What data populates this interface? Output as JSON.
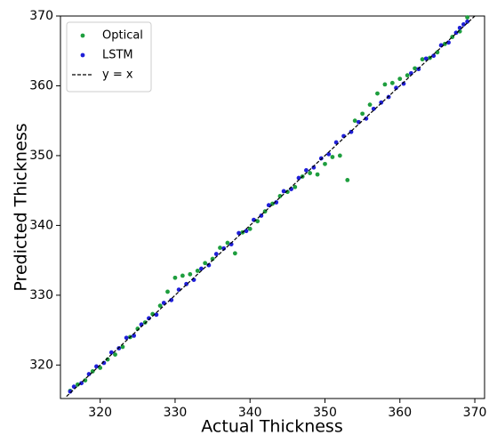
{
  "chart_data": {
    "type": "scatter",
    "x_label": "Actual Thickness",
    "y_label": "Predicted Thickness",
    "xlim": [
      314.7,
      371.3
    ],
    "ylim": [
      315.2,
      370
    ],
    "xticks": [
      320,
      330,
      340,
      350,
      360,
      370
    ],
    "yticks": [
      320,
      330,
      340,
      350,
      360,
      370
    ],
    "legend": "upper left",
    "series": [
      {
        "name": "Optical",
        "color": "#1e9e3e",
        "x": [
          316,
          317,
          318,
          319,
          320,
          321,
          322,
          323,
          324,
          325,
          326,
          327,
          328,
          329,
          330,
          331,
          332,
          333,
          334,
          335,
          336,
          337,
          338,
          339,
          340,
          341,
          342,
          343,
          344,
          345,
          346,
          347,
          348,
          349,
          350,
          351,
          352,
          353,
          354,
          355,
          356,
          357,
          358,
          359,
          360,
          361,
          362,
          363,
          364,
          365,
          366,
          367,
          368,
          369
        ],
        "values": [
          316.3,
          317.2,
          317.8,
          319.1,
          319.6,
          320.8,
          321.5,
          322.6,
          324.0,
          325.2,
          326.1,
          327.3,
          328.5,
          330.5,
          332.5,
          332.8,
          333.0,
          333.5,
          334.6,
          335.2,
          336.8,
          337.5,
          336.0,
          339.0,
          339.5,
          340.6,
          342.0,
          343.1,
          344.2,
          344.8,
          345.5,
          347.0,
          347.5,
          347.3,
          348.8,
          349.8,
          350.0,
          346.5,
          355.0,
          356.0,
          357.3,
          358.9,
          360.2,
          360.4,
          361.0,
          361.5,
          362.5,
          363.8,
          364.0,
          364.8,
          366.0,
          367.0,
          367.8,
          369.8
        ]
      },
      {
        "name": "LSTM",
        "color": "#1f1fd8",
        "x": [
          316,
          316.5,
          317.5,
          318.5,
          319.5,
          320.5,
          321.5,
          322.5,
          323.5,
          324.5,
          325.5,
          326.5,
          327.5,
          328.5,
          329.5,
          330.5,
          331.5,
          332.5,
          333.5,
          334.5,
          335.5,
          336.5,
          337.5,
          338.5,
          339.5,
          340.5,
          341.5,
          342.5,
          343.5,
          344.5,
          345.5,
          346.5,
          347.5,
          348.5,
          349.5,
          350.5,
          351.5,
          352.5,
          353.5,
          354.5,
          355.5,
          356.5,
          357.5,
          358.5,
          359.5,
          360.5,
          361.5,
          362.5,
          363.5,
          364.5,
          365.5,
          366.5,
          367.5,
          368,
          368.5,
          369
        ],
        "values": [
          316.2,
          316.9,
          317.4,
          318.7,
          319.8,
          320.3,
          321.8,
          322.4,
          323.9,
          324.2,
          325.8,
          326.7,
          327.2,
          328.9,
          329.3,
          330.8,
          331.6,
          332.2,
          333.8,
          334.3,
          335.9,
          336.7,
          337.3,
          338.9,
          339.2,
          340.8,
          341.4,
          342.9,
          343.3,
          344.9,
          345.2,
          346.8,
          347.9,
          348.3,
          349.6,
          350.2,
          351.9,
          352.8,
          353.4,
          354.8,
          355.3,
          356.7,
          357.6,
          358.4,
          359.7,
          360.3,
          361.8,
          362.4,
          363.9,
          364.3,
          365.8,
          366.2,
          367.6,
          368.3,
          368.8,
          369.2
        ]
      }
    ],
    "reference_line": {
      "name": "y = x",
      "color": "#000000",
      "x": [
        315.5,
        370
      ],
      "values": [
        315.5,
        370
      ]
    }
  }
}
